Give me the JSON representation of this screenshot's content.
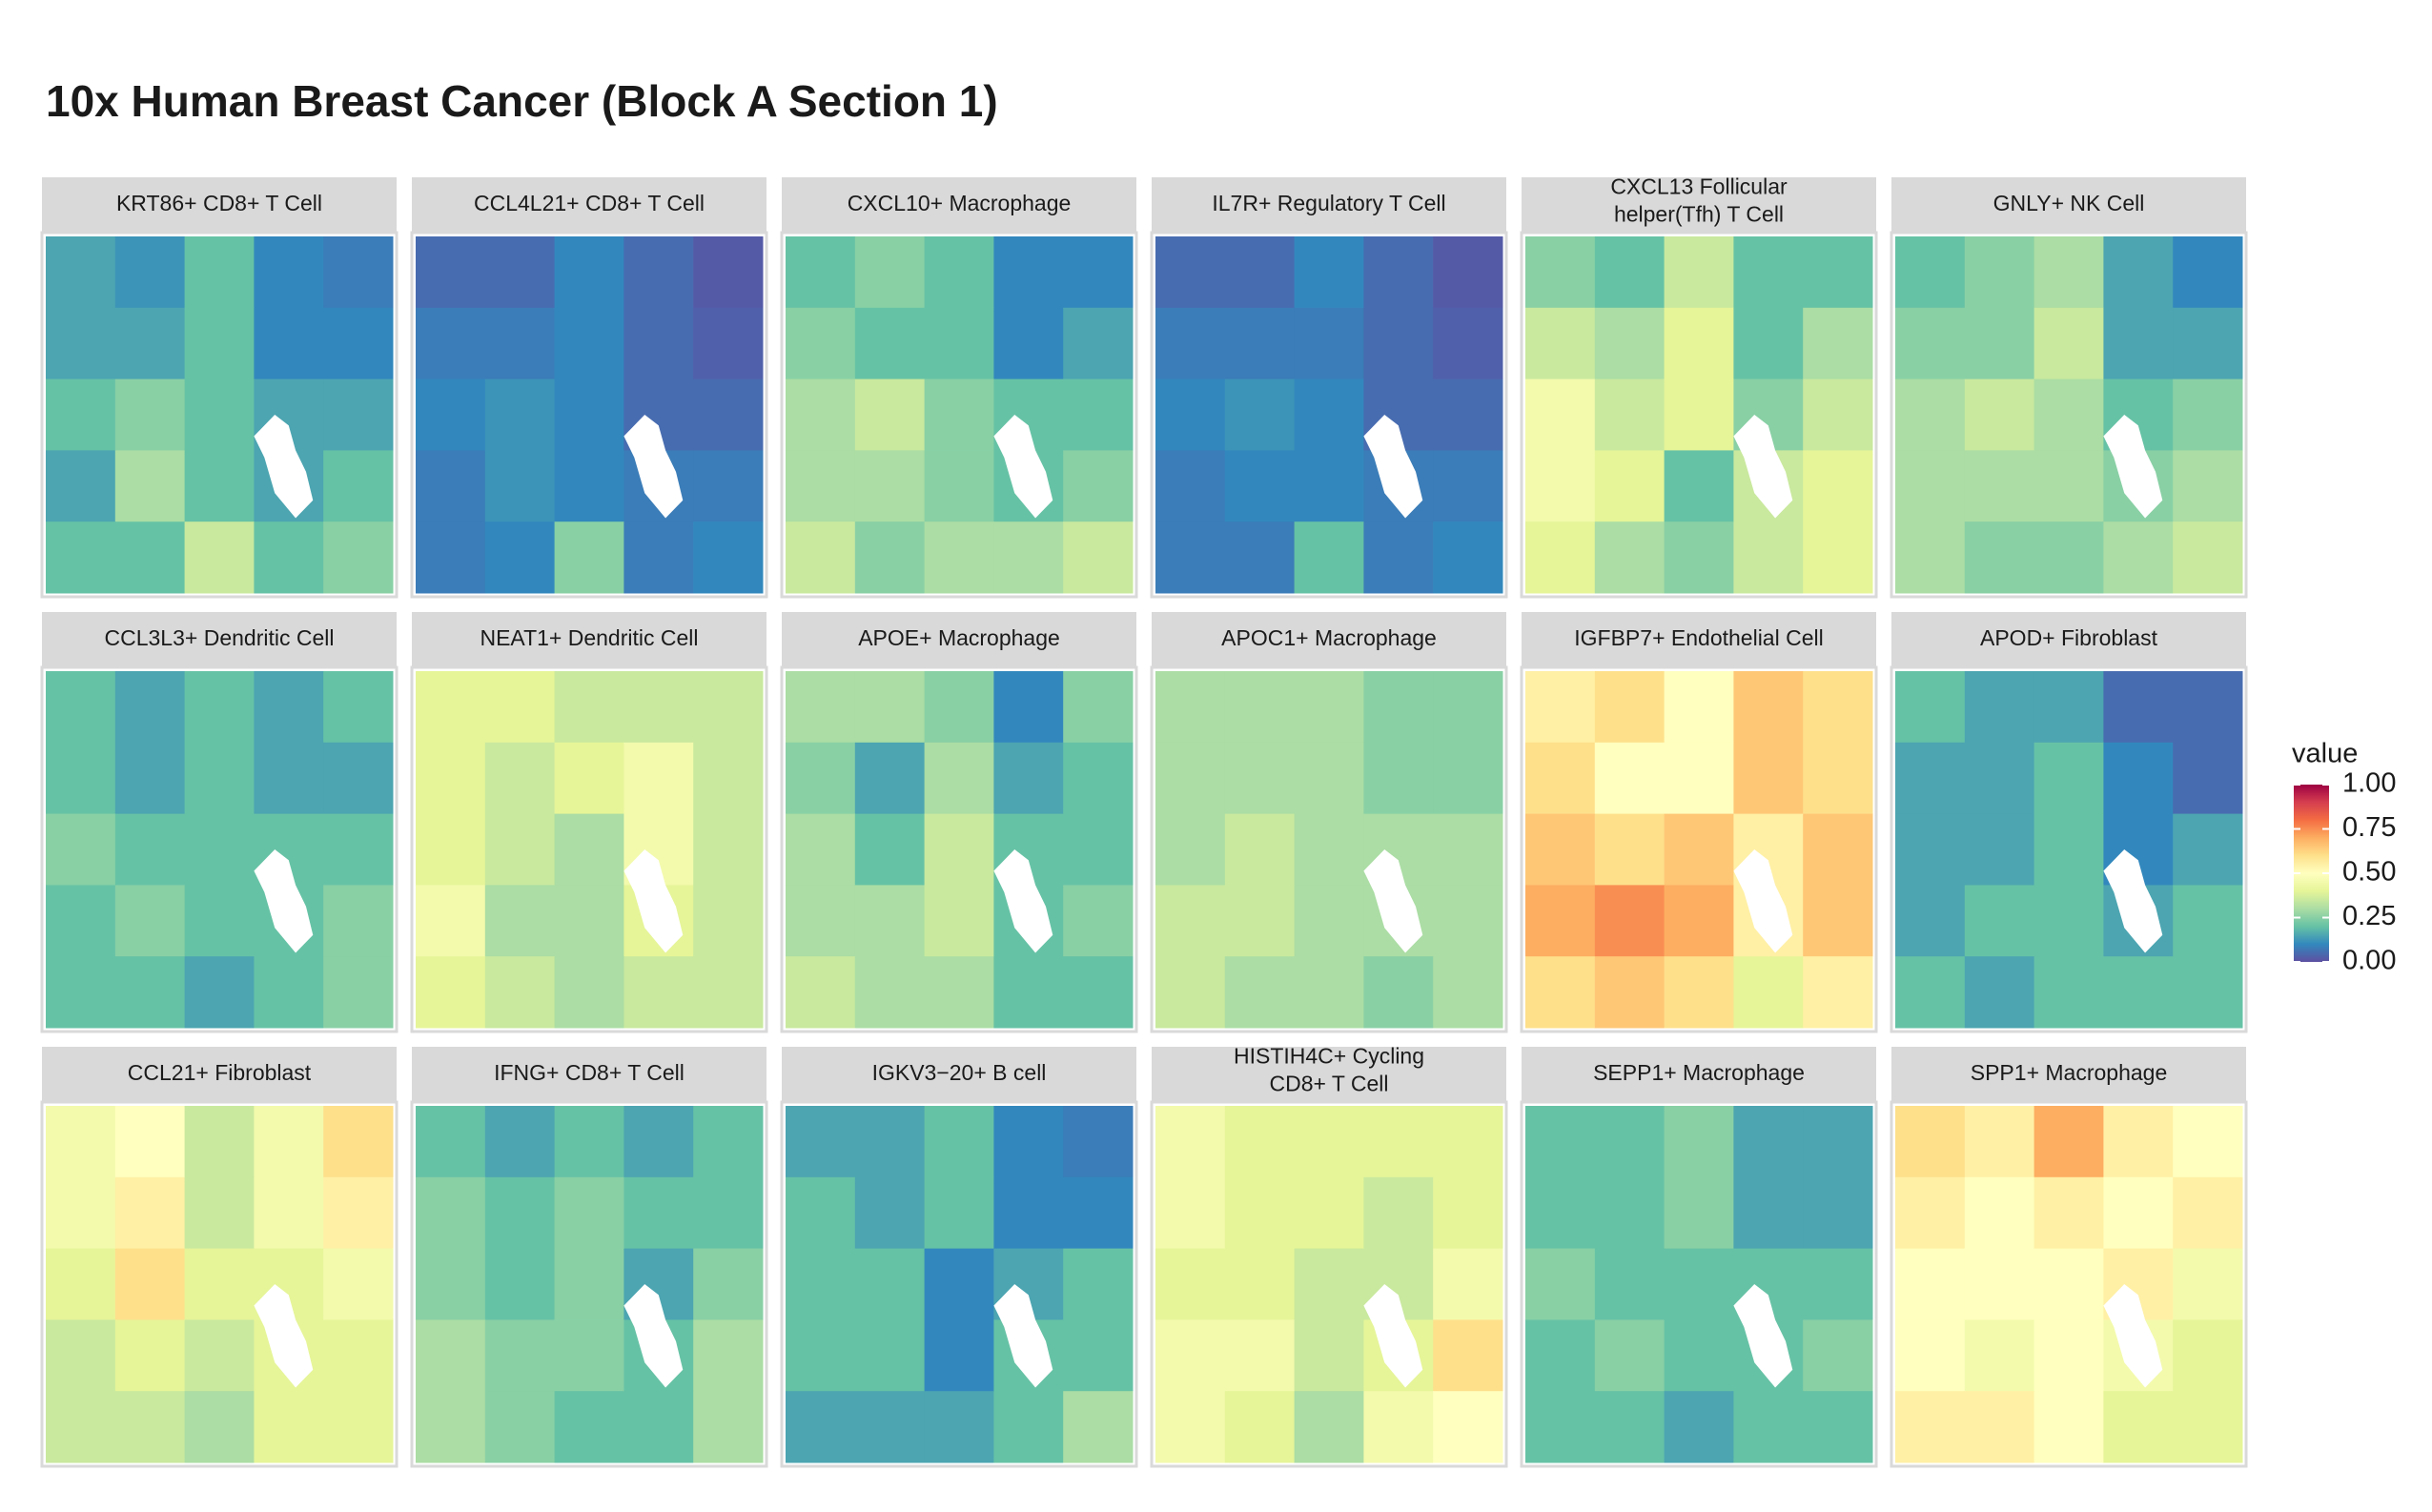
{
  "chart_data": {
    "type": "heatmap",
    "title": "10x Human Breast Cancer (Block A Section 1)",
    "legend_title": "value",
    "zlim": [
      0,
      1
    ],
    "zticks": [
      {
        "value": 0,
        "label": "0.00"
      },
      {
        "value": 0.25,
        "label": "0.25"
      },
      {
        "value": 0.5,
        "label": "0.50"
      },
      {
        "value": 0.75,
        "label": "0.75"
      },
      {
        "value": 1,
        "label": "1.00"
      }
    ],
    "colors": [
      "#5E4FA2",
      "#3288BD",
      "#66C2A5",
      "#ABDDA4",
      "#E6F598",
      "#FFFFBF",
      "#FEE08B",
      "#FDAE61",
      "#F46D43",
      "#D53E4F",
      "#9E0142"
    ],
    "panels": [
      {
        "title": [
          "KRT86+ CD8+ T Cell"
        ],
        "values": [
          [
            0.15,
            0.12,
            0.2,
            0.1,
            0.08
          ],
          [
            0.15,
            0.15,
            0.2,
            0.1,
            0.1
          ],
          [
            0.2,
            0.25,
            0.2,
            0.15,
            0.15
          ],
          [
            0.15,
            0.3,
            0.2,
            0.15,
            0.2
          ],
          [
            0.2,
            0.2,
            0.35,
            0.2,
            0.25
          ]
        ]
      },
      {
        "title": [
          "CCL4L21+ CD8+ T Cell"
        ],
        "values": [
          [
            0.05,
            0.05,
            0.1,
            0.05,
            0.02
          ],
          [
            0.08,
            0.08,
            0.1,
            0.05,
            0.03
          ],
          [
            0.1,
            0.12,
            0.1,
            0.05,
            0.05
          ],
          [
            0.08,
            0.12,
            0.1,
            0.08,
            0.08
          ],
          [
            0.08,
            0.1,
            0.25,
            0.08,
            0.1
          ]
        ]
      },
      {
        "title": [
          "CXCL10+ Macrophage"
        ],
        "values": [
          [
            0.2,
            0.25,
            0.2,
            0.1,
            0.1
          ],
          [
            0.25,
            0.2,
            0.2,
            0.1,
            0.15
          ],
          [
            0.3,
            0.35,
            0.25,
            0.2,
            0.2
          ],
          [
            0.3,
            0.3,
            0.25,
            0.2,
            0.25
          ],
          [
            0.35,
            0.25,
            0.3,
            0.3,
            0.35
          ]
        ]
      },
      {
        "title": [
          "IL7R+ Regulatory T Cell"
        ],
        "values": [
          [
            0.05,
            0.05,
            0.1,
            0.05,
            0.02
          ],
          [
            0.08,
            0.08,
            0.08,
            0.05,
            0.03
          ],
          [
            0.1,
            0.12,
            0.1,
            0.05,
            0.05
          ],
          [
            0.08,
            0.1,
            0.1,
            0.08,
            0.08
          ],
          [
            0.08,
            0.08,
            0.2,
            0.08,
            0.1
          ]
        ]
      },
      {
        "title": [
          "CXCL13 Follicular",
          "helper(Tfh) T Cell"
        ],
        "values": [
          [
            0.25,
            0.2,
            0.35,
            0.2,
            0.2
          ],
          [
            0.35,
            0.3,
            0.4,
            0.2,
            0.3
          ],
          [
            0.45,
            0.35,
            0.4,
            0.25,
            0.35
          ],
          [
            0.45,
            0.4,
            0.2,
            0.35,
            0.4
          ],
          [
            0.4,
            0.3,
            0.25,
            0.35,
            0.4
          ]
        ]
      },
      {
        "title": [
          "GNLY+ NK Cell"
        ],
        "values": [
          [
            0.2,
            0.25,
            0.3,
            0.15,
            0.1
          ],
          [
            0.25,
            0.25,
            0.35,
            0.15,
            0.15
          ],
          [
            0.3,
            0.35,
            0.3,
            0.2,
            0.25
          ],
          [
            0.3,
            0.3,
            0.3,
            0.25,
            0.3
          ],
          [
            0.3,
            0.25,
            0.25,
            0.3,
            0.35
          ]
        ]
      },
      {
        "title": [
          "CCL3L3+ Dendritic Cell"
        ],
        "values": [
          [
            0.2,
            0.15,
            0.2,
            0.15,
            0.2
          ],
          [
            0.2,
            0.15,
            0.2,
            0.15,
            0.15
          ],
          [
            0.25,
            0.2,
            0.2,
            0.2,
            0.2
          ],
          [
            0.2,
            0.25,
            0.2,
            0.2,
            0.25
          ],
          [
            0.2,
            0.2,
            0.15,
            0.2,
            0.25
          ]
        ]
      },
      {
        "title": [
          "NEAT1+ Dendritic Cell"
        ],
        "values": [
          [
            0.4,
            0.4,
            0.35,
            0.35,
            0.35
          ],
          [
            0.4,
            0.35,
            0.4,
            0.45,
            0.35
          ],
          [
            0.4,
            0.35,
            0.3,
            0.45,
            0.35
          ],
          [
            0.45,
            0.3,
            0.3,
            0.4,
            0.35
          ],
          [
            0.4,
            0.35,
            0.3,
            0.35,
            0.35
          ]
        ]
      },
      {
        "title": [
          "APOE+ Macrophage"
        ],
        "values": [
          [
            0.3,
            0.3,
            0.25,
            0.1,
            0.25
          ],
          [
            0.25,
            0.15,
            0.3,
            0.15,
            0.2
          ],
          [
            0.3,
            0.2,
            0.35,
            0.2,
            0.2
          ],
          [
            0.3,
            0.3,
            0.35,
            0.2,
            0.25
          ],
          [
            0.35,
            0.3,
            0.3,
            0.2,
            0.2
          ]
        ]
      },
      {
        "title": [
          "APOC1+ Macrophage"
        ],
        "values": [
          [
            0.3,
            0.3,
            0.3,
            0.25,
            0.25
          ],
          [
            0.3,
            0.3,
            0.3,
            0.25,
            0.25
          ],
          [
            0.3,
            0.35,
            0.3,
            0.3,
            0.3
          ],
          [
            0.35,
            0.35,
            0.3,
            0.3,
            0.3
          ],
          [
            0.35,
            0.3,
            0.3,
            0.25,
            0.3
          ]
        ]
      },
      {
        "title": [
          "IGFBP7+ Endothelial Cell"
        ],
        "values": [
          [
            0.55,
            0.6,
            0.5,
            0.65,
            0.6
          ],
          [
            0.6,
            0.5,
            0.5,
            0.65,
            0.6
          ],
          [
            0.65,
            0.6,
            0.65,
            0.55,
            0.65
          ],
          [
            0.7,
            0.75,
            0.7,
            0.55,
            0.65
          ],
          [
            0.6,
            0.65,
            0.6,
            0.4,
            0.55
          ]
        ]
      },
      {
        "title": [
          "APOD+ Fibroblast"
        ],
        "values": [
          [
            0.2,
            0.15,
            0.15,
            0.05,
            0.05
          ],
          [
            0.15,
            0.15,
            0.2,
            0.1,
            0.05
          ],
          [
            0.15,
            0.15,
            0.2,
            0.1,
            0.15
          ],
          [
            0.15,
            0.2,
            0.2,
            0.15,
            0.2
          ],
          [
            0.2,
            0.15,
            0.2,
            0.2,
            0.2
          ]
        ]
      },
      {
        "title": [
          "CCL21+ Fibroblast"
        ],
        "values": [
          [
            0.45,
            0.5,
            0.35,
            0.45,
            0.6
          ],
          [
            0.45,
            0.55,
            0.35,
            0.45,
            0.55
          ],
          [
            0.4,
            0.6,
            0.4,
            0.4,
            0.45
          ],
          [
            0.35,
            0.4,
            0.35,
            0.4,
            0.4
          ],
          [
            0.35,
            0.35,
            0.3,
            0.4,
            0.4
          ]
        ]
      },
      {
        "title": [
          "IFNG+ CD8+ T Cell"
        ],
        "values": [
          [
            0.2,
            0.15,
            0.2,
            0.15,
            0.2
          ],
          [
            0.25,
            0.2,
            0.25,
            0.2,
            0.2
          ],
          [
            0.25,
            0.2,
            0.25,
            0.15,
            0.25
          ],
          [
            0.3,
            0.25,
            0.25,
            0.2,
            0.3
          ],
          [
            0.3,
            0.25,
            0.2,
            0.2,
            0.3
          ]
        ]
      },
      {
        "title": [
          "IGKV3−20+ B cell"
        ],
        "values": [
          [
            0.15,
            0.15,
            0.2,
            0.1,
            0.08
          ],
          [
            0.2,
            0.15,
            0.2,
            0.1,
            0.1
          ],
          [
            0.2,
            0.2,
            0.1,
            0.15,
            0.2
          ],
          [
            0.2,
            0.2,
            0.1,
            0.2,
            0.2
          ],
          [
            0.15,
            0.15,
            0.15,
            0.2,
            0.3
          ]
        ]
      },
      {
        "title": [
          "HISTIH4C+ Cycling",
          "CD8+ T Cell"
        ],
        "values": [
          [
            0.45,
            0.4,
            0.4,
            0.4,
            0.4
          ],
          [
            0.45,
            0.4,
            0.4,
            0.35,
            0.4
          ],
          [
            0.4,
            0.4,
            0.35,
            0.35,
            0.45
          ],
          [
            0.45,
            0.45,
            0.35,
            0.4,
            0.6
          ],
          [
            0.45,
            0.4,
            0.3,
            0.45,
            0.5
          ]
        ]
      },
      {
        "title": [
          "SEPP1+ Macrophage"
        ],
        "values": [
          [
            0.2,
            0.2,
            0.25,
            0.15,
            0.15
          ],
          [
            0.2,
            0.2,
            0.25,
            0.15,
            0.15
          ],
          [
            0.25,
            0.2,
            0.2,
            0.2,
            0.2
          ],
          [
            0.2,
            0.25,
            0.2,
            0.2,
            0.25
          ],
          [
            0.2,
            0.2,
            0.15,
            0.2,
            0.2
          ]
        ]
      },
      {
        "title": [
          "SPP1+ Macrophage"
        ],
        "values": [
          [
            0.6,
            0.55,
            0.7,
            0.55,
            0.5
          ],
          [
            0.55,
            0.5,
            0.55,
            0.5,
            0.55
          ],
          [
            0.5,
            0.5,
            0.5,
            0.55,
            0.45
          ],
          [
            0.5,
            0.45,
            0.5,
            0.45,
            0.4
          ],
          [
            0.55,
            0.55,
            0.5,
            0.4,
            0.4
          ]
        ]
      }
    ]
  }
}
